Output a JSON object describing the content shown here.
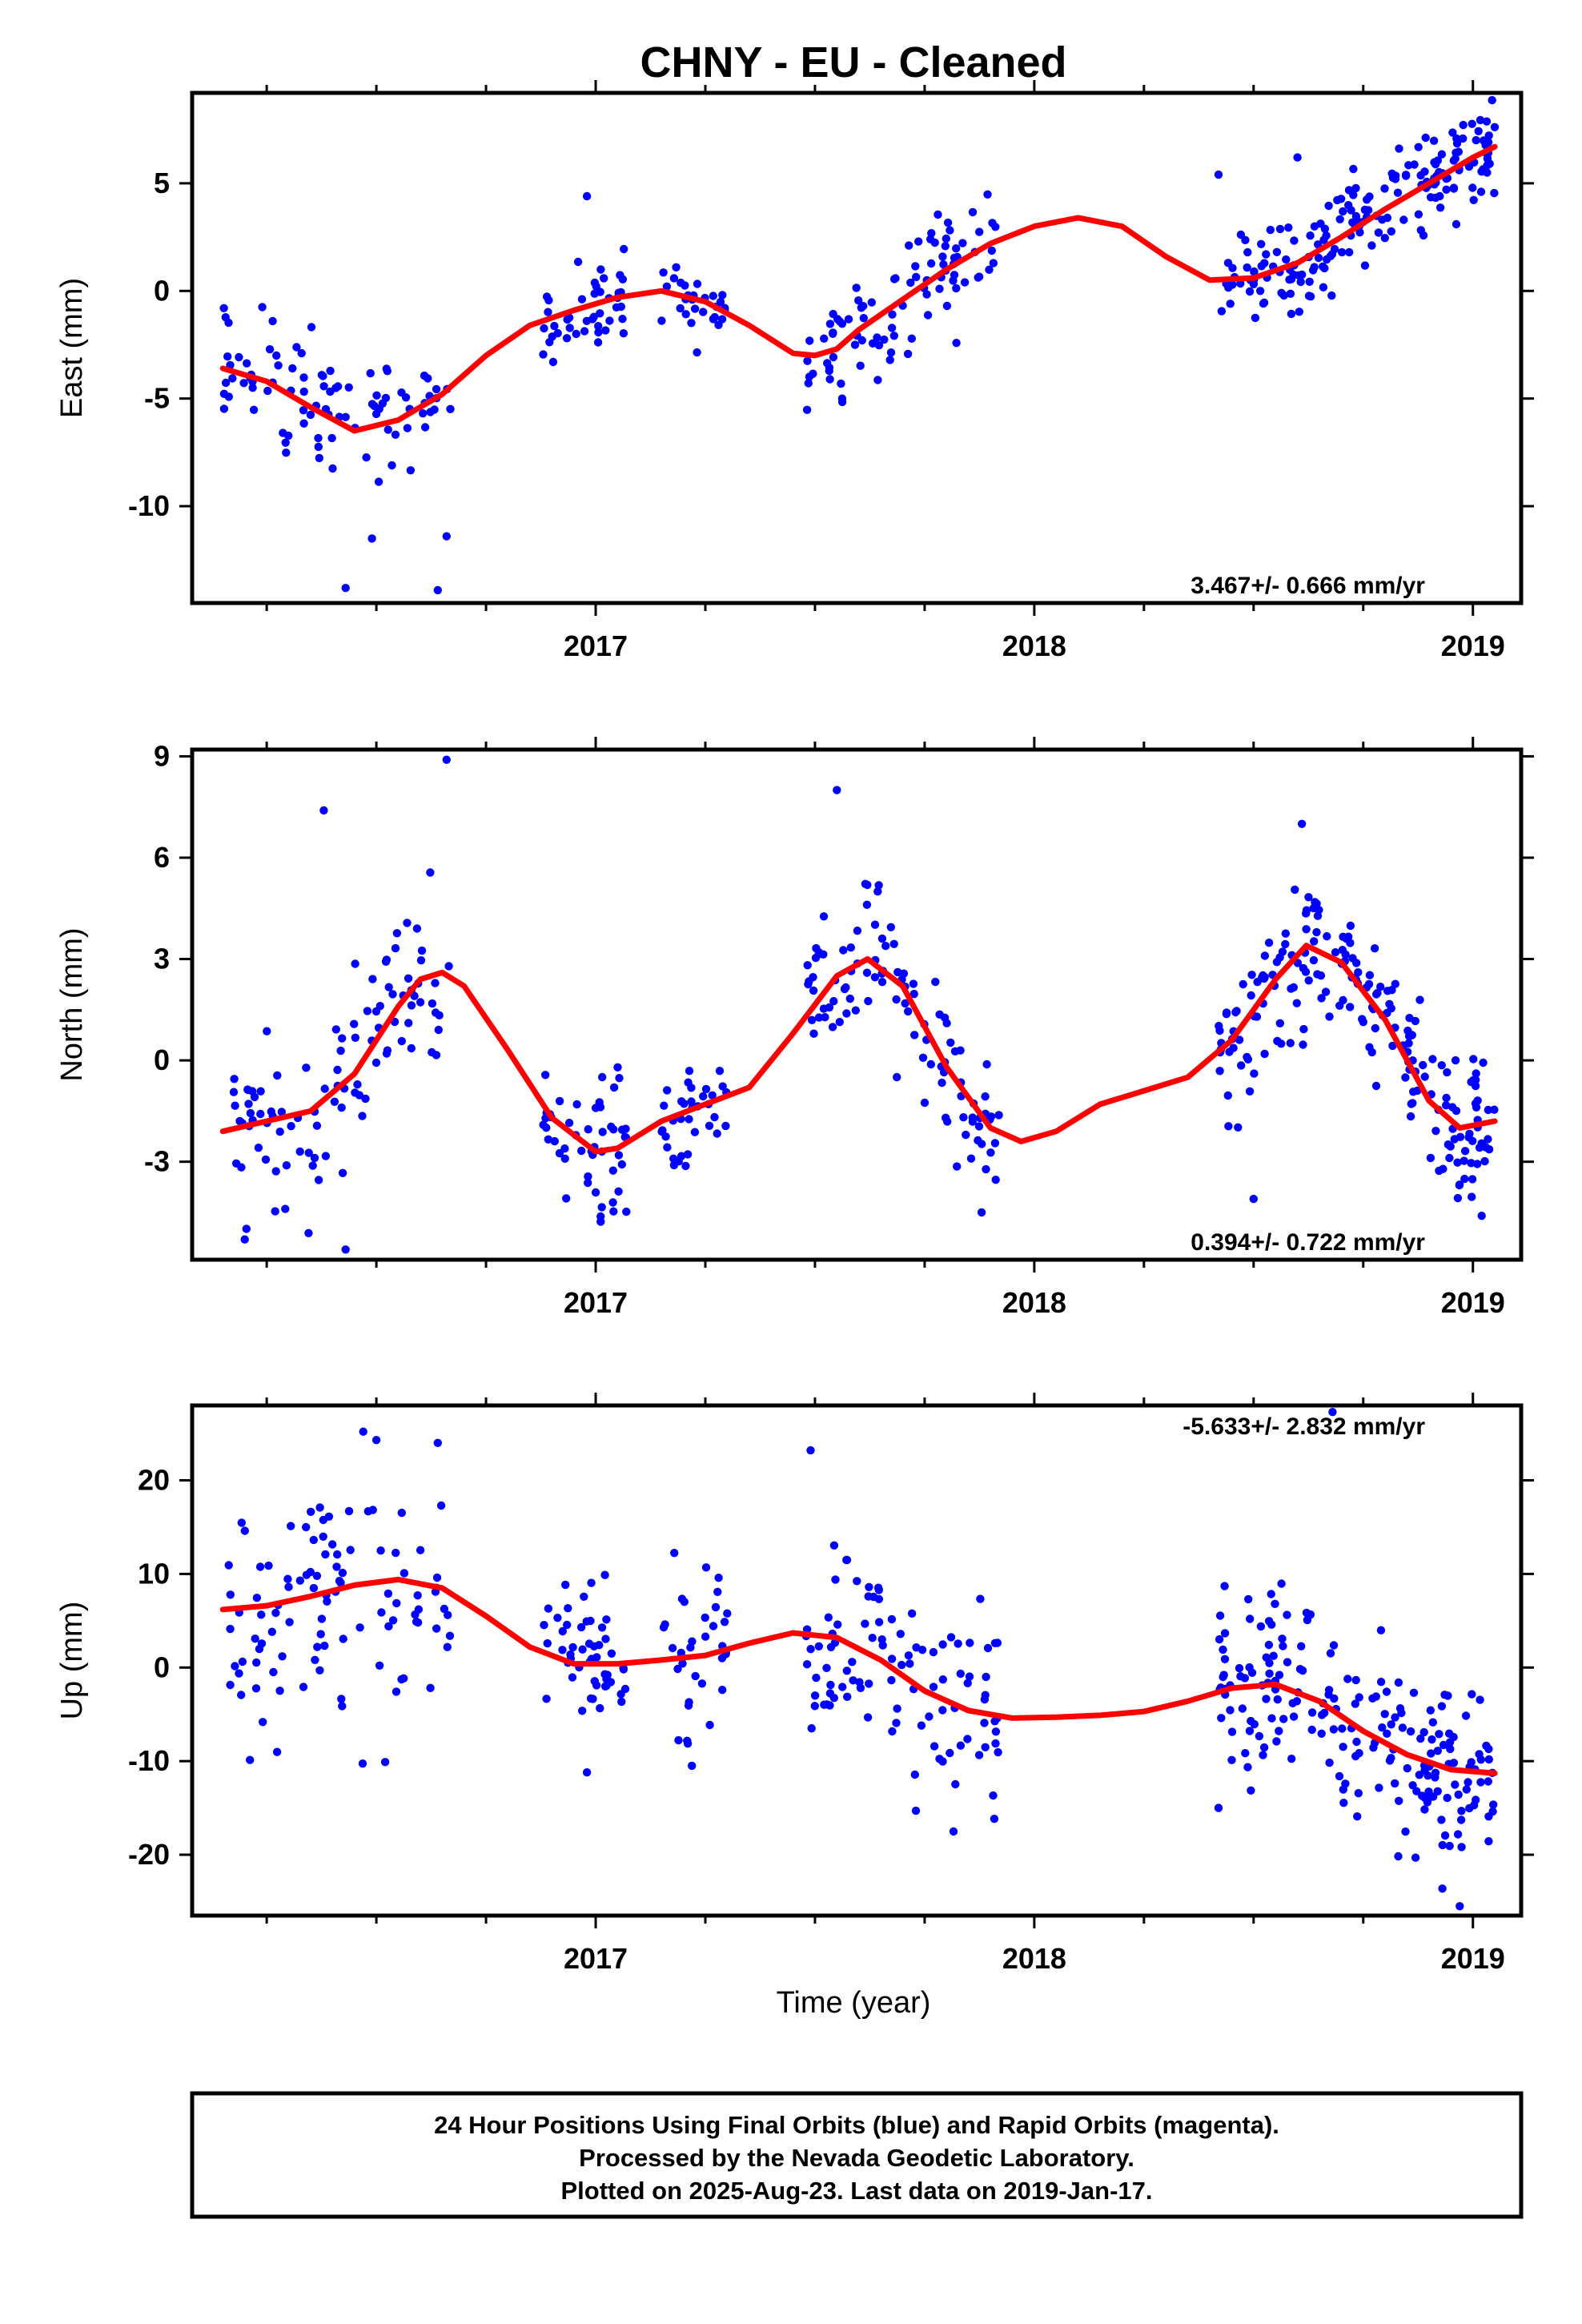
{
  "chart_data": {
    "title": "CHNY  - EU - Cleaned",
    "xlabel": "Time (year)",
    "x_ticks": [
      {
        "value": 2017,
        "label": "2017"
      },
      {
        "value": 2018,
        "label": "2018"
      },
      {
        "value": 2019,
        "label": "2019"
      }
    ],
    "xlim": [
      2016.08,
      2019.11
    ],
    "grid": false,
    "colors": {
      "final_orbits": "#0000ff",
      "rapid_orbits": "#ff00ff",
      "model": "#ff0000"
    },
    "panels": [
      {
        "id": "east",
        "type": "scatter",
        "ylabel": "East (mm)",
        "ylim": [
          -14.5,
          9.2
        ],
        "y_ticks": [
          {
            "value": 5,
            "label": "5"
          },
          {
            "value": 0,
            "label": "0"
          },
          {
            "value": -5,
            "label": "-5"
          },
          {
            "value": -10,
            "label": "-10"
          }
        ],
        "rate": "3.467+/- 0.666 mm/yr",
        "model_curve": [
          [
            2016.15,
            -3.6
          ],
          [
            2016.25,
            -4.2
          ],
          [
            2016.35,
            -5.4
          ],
          [
            2016.45,
            -6.5
          ],
          [
            2016.55,
            -6.0
          ],
          [
            2016.65,
            -4.8
          ],
          [
            2016.75,
            -3.0
          ],
          [
            2016.85,
            -1.6
          ],
          [
            2016.95,
            -0.9
          ],
          [
            2017.05,
            -0.3
          ],
          [
            2017.15,
            0.0
          ],
          [
            2017.25,
            -0.5
          ],
          [
            2017.35,
            -1.6
          ],
          [
            2017.45,
            -2.9
          ],
          [
            2017.5,
            -3.0
          ],
          [
            2017.55,
            -2.7
          ],
          [
            2017.6,
            -1.8
          ],
          [
            2017.7,
            -0.4
          ],
          [
            2017.8,
            1.0
          ],
          [
            2017.9,
            2.2
          ],
          [
            2018.0,
            3.0
          ],
          [
            2018.1,
            3.4
          ],
          [
            2018.2,
            3.0
          ],
          [
            2018.3,
            1.6
          ],
          [
            2018.4,
            0.5
          ],
          [
            2018.5,
            0.6
          ],
          [
            2018.6,
            1.3
          ],
          [
            2018.7,
            2.5
          ],
          [
            2018.8,
            3.8
          ],
          [
            2018.9,
            5.0
          ],
          [
            2019.0,
            6.2
          ],
          [
            2019.05,
            6.7
          ]
        ],
        "segments": [
          {
            "t0": 2016.15,
            "t1": 2016.67,
            "n": 90,
            "sd": 1.6
          },
          {
            "t0": 2016.88,
            "t1": 2017.07,
            "n": 45,
            "sd": 1.0
          },
          {
            "t0": 2017.15,
            "t1": 2017.3,
            "n": 30,
            "sd": 0.8
          },
          {
            "t0": 2017.48,
            "t1": 2017.92,
            "n": 95,
            "sd": 1.5
          },
          {
            "t0": 2018.42,
            "t1": 2019.05,
            "n": 190,
            "sd": 1.2
          }
        ],
        "outliers": [
          [
            2016.43,
            -13.8
          ],
          [
            2016.64,
            -13.9
          ],
          [
            2016.66,
            -11.4
          ],
          [
            2016.49,
            -11.5
          ],
          [
            2016.98,
            4.4
          ],
          [
            2018.42,
            5.4
          ],
          [
            2018.6,
            6.2
          ]
        ]
      },
      {
        "id": "north",
        "type": "scatter",
        "ylabel": "North (mm)",
        "ylim": [
          -5.9,
          9.2
        ],
        "y_ticks": [
          {
            "value": 9,
            "label": "9"
          },
          {
            "value": 6,
            "label": "6"
          },
          {
            "value": 3,
            "label": "3"
          },
          {
            "value": 0,
            "label": "0"
          },
          {
            "value": -3,
            "label": "-3"
          }
        ],
        "rate": "0.394+/- 0.722 mm/yr",
        "model_curve": [
          [
            2016.15,
            -2.1
          ],
          [
            2016.25,
            -1.8
          ],
          [
            2016.35,
            -1.5
          ],
          [
            2016.45,
            -0.4
          ],
          [
            2016.55,
            1.6
          ],
          [
            2016.6,
            2.4
          ],
          [
            2016.65,
            2.6
          ],
          [
            2016.7,
            2.2
          ],
          [
            2016.8,
            0.3
          ],
          [
            2016.9,
            -1.7
          ],
          [
            2017.0,
            -2.7
          ],
          [
            2017.05,
            -2.6
          ],
          [
            2017.15,
            -1.8
          ],
          [
            2017.25,
            -1.3
          ],
          [
            2017.35,
            -0.8
          ],
          [
            2017.45,
            0.8
          ],
          [
            2017.55,
            2.5
          ],
          [
            2017.62,
            3.0
          ],
          [
            2017.7,
            2.2
          ],
          [
            2017.8,
            -0.2
          ],
          [
            2017.9,
            -2.0
          ],
          [
            2017.97,
            -2.4
          ],
          [
            2018.05,
            -2.1
          ],
          [
            2018.15,
            -1.3
          ],
          [
            2018.25,
            -0.9
          ],
          [
            2018.35,
            -0.5
          ],
          [
            2018.45,
            0.6
          ],
          [
            2018.55,
            2.4
          ],
          [
            2018.62,
            3.4
          ],
          [
            2018.7,
            2.9
          ],
          [
            2018.8,
            1.2
          ],
          [
            2018.9,
            -1.2
          ],
          [
            2018.97,
            -2.0
          ],
          [
            2019.05,
            -1.8
          ]
        ],
        "segments": [
          {
            "t0": 2016.15,
            "t1": 2016.67,
            "n": 100,
            "sd": 1.4
          },
          {
            "t0": 2016.88,
            "t1": 2017.07,
            "n": 50,
            "sd": 0.9
          },
          {
            "t0": 2017.15,
            "t1": 2017.3,
            "n": 35,
            "sd": 0.8
          },
          {
            "t0": 2017.48,
            "t1": 2017.92,
            "n": 100,
            "sd": 1.2
          },
          {
            "t0": 2018.42,
            "t1": 2019.05,
            "n": 200,
            "sd": 1.1
          }
        ],
        "outliers": [
          [
            2016.66,
            8.9
          ],
          [
            2016.38,
            7.4
          ],
          [
            2017.55,
            8.0
          ],
          [
            2018.61,
            7.0
          ],
          [
            2016.2,
            -5.3
          ],
          [
            2016.43,
            -5.6
          ],
          [
            2017.88,
            -4.5
          ],
          [
            2018.5,
            -4.1
          ],
          [
            2019.02,
            -4.6
          ]
        ]
      },
      {
        "id": "up",
        "type": "scatter",
        "ylabel": "Up (mm)",
        "ylim": [
          -26.5,
          28.0
        ],
        "y_ticks": [
          {
            "value": 20,
            "label": "20"
          },
          {
            "value": 10,
            "label": "10"
          },
          {
            "value": 0,
            "label": "0"
          },
          {
            "value": -10,
            "label": "-10"
          },
          {
            "value": -20,
            "label": "-20"
          }
        ],
        "rate": "-5.633+/- 2.832 mm/yr",
        "model_curve": [
          [
            2016.15,
            6.2
          ],
          [
            2016.25,
            6.6
          ],
          [
            2016.35,
            7.6
          ],
          [
            2016.45,
            8.8
          ],
          [
            2016.55,
            9.4
          ],
          [
            2016.65,
            8.5
          ],
          [
            2016.75,
            5.5
          ],
          [
            2016.85,
            2.2
          ],
          [
            2016.95,
            0.4
          ],
          [
            2017.05,
            0.4
          ],
          [
            2017.15,
            0.8
          ],
          [
            2017.25,
            1.3
          ],
          [
            2017.35,
            2.6
          ],
          [
            2017.45,
            3.7
          ],
          [
            2017.55,
            3.2
          ],
          [
            2017.65,
            0.8
          ],
          [
            2017.75,
            -2.5
          ],
          [
            2017.85,
            -4.6
          ],
          [
            2017.95,
            -5.4
          ],
          [
            2018.05,
            -5.3
          ],
          [
            2018.15,
            -5.1
          ],
          [
            2018.25,
            -4.7
          ],
          [
            2018.35,
            -3.6
          ],
          [
            2018.45,
            -2.2
          ],
          [
            2018.55,
            -1.8
          ],
          [
            2018.65,
            -3.6
          ],
          [
            2018.75,
            -6.8
          ],
          [
            2018.85,
            -9.3
          ],
          [
            2018.95,
            -10.9
          ],
          [
            2019.05,
            -11.3
          ]
        ],
        "segments": [
          {
            "t0": 2016.15,
            "t1": 2016.67,
            "n": 100,
            "sd": 6.0
          },
          {
            "t0": 2016.88,
            "t1": 2017.07,
            "n": 50,
            "sd": 4.0
          },
          {
            "t0": 2017.15,
            "t1": 2017.3,
            "n": 35,
            "sd": 4.5
          },
          {
            "t0": 2017.48,
            "t1": 2017.92,
            "n": 100,
            "sd": 6.0
          },
          {
            "t0": 2018.42,
            "t1": 2019.05,
            "n": 200,
            "sd": 5.0
          }
        ],
        "outliers": [
          [
            2016.47,
            25.2
          ],
          [
            2016.5,
            24.3
          ],
          [
            2016.64,
            24.0
          ],
          [
            2017.49,
            23.2
          ],
          [
            2018.68,
            27.3
          ],
          [
            2016.52,
            -10.1
          ],
          [
            2016.98,
            -11.2
          ],
          [
            2017.73,
            -15.3
          ],
          [
            2018.42,
            -15.0
          ],
          [
            2018.97,
            -25.5
          ]
        ]
      }
    ]
  },
  "footer": {
    "line1": "24 Hour Positions Using Final Orbits (blue) and Rapid Orbits (magenta).",
    "line2": "Processed by the Nevada Geodetic Laboratory.",
    "line3": "Plotted on 2025-Aug-23. Last data on 2019-Jan-17."
  }
}
